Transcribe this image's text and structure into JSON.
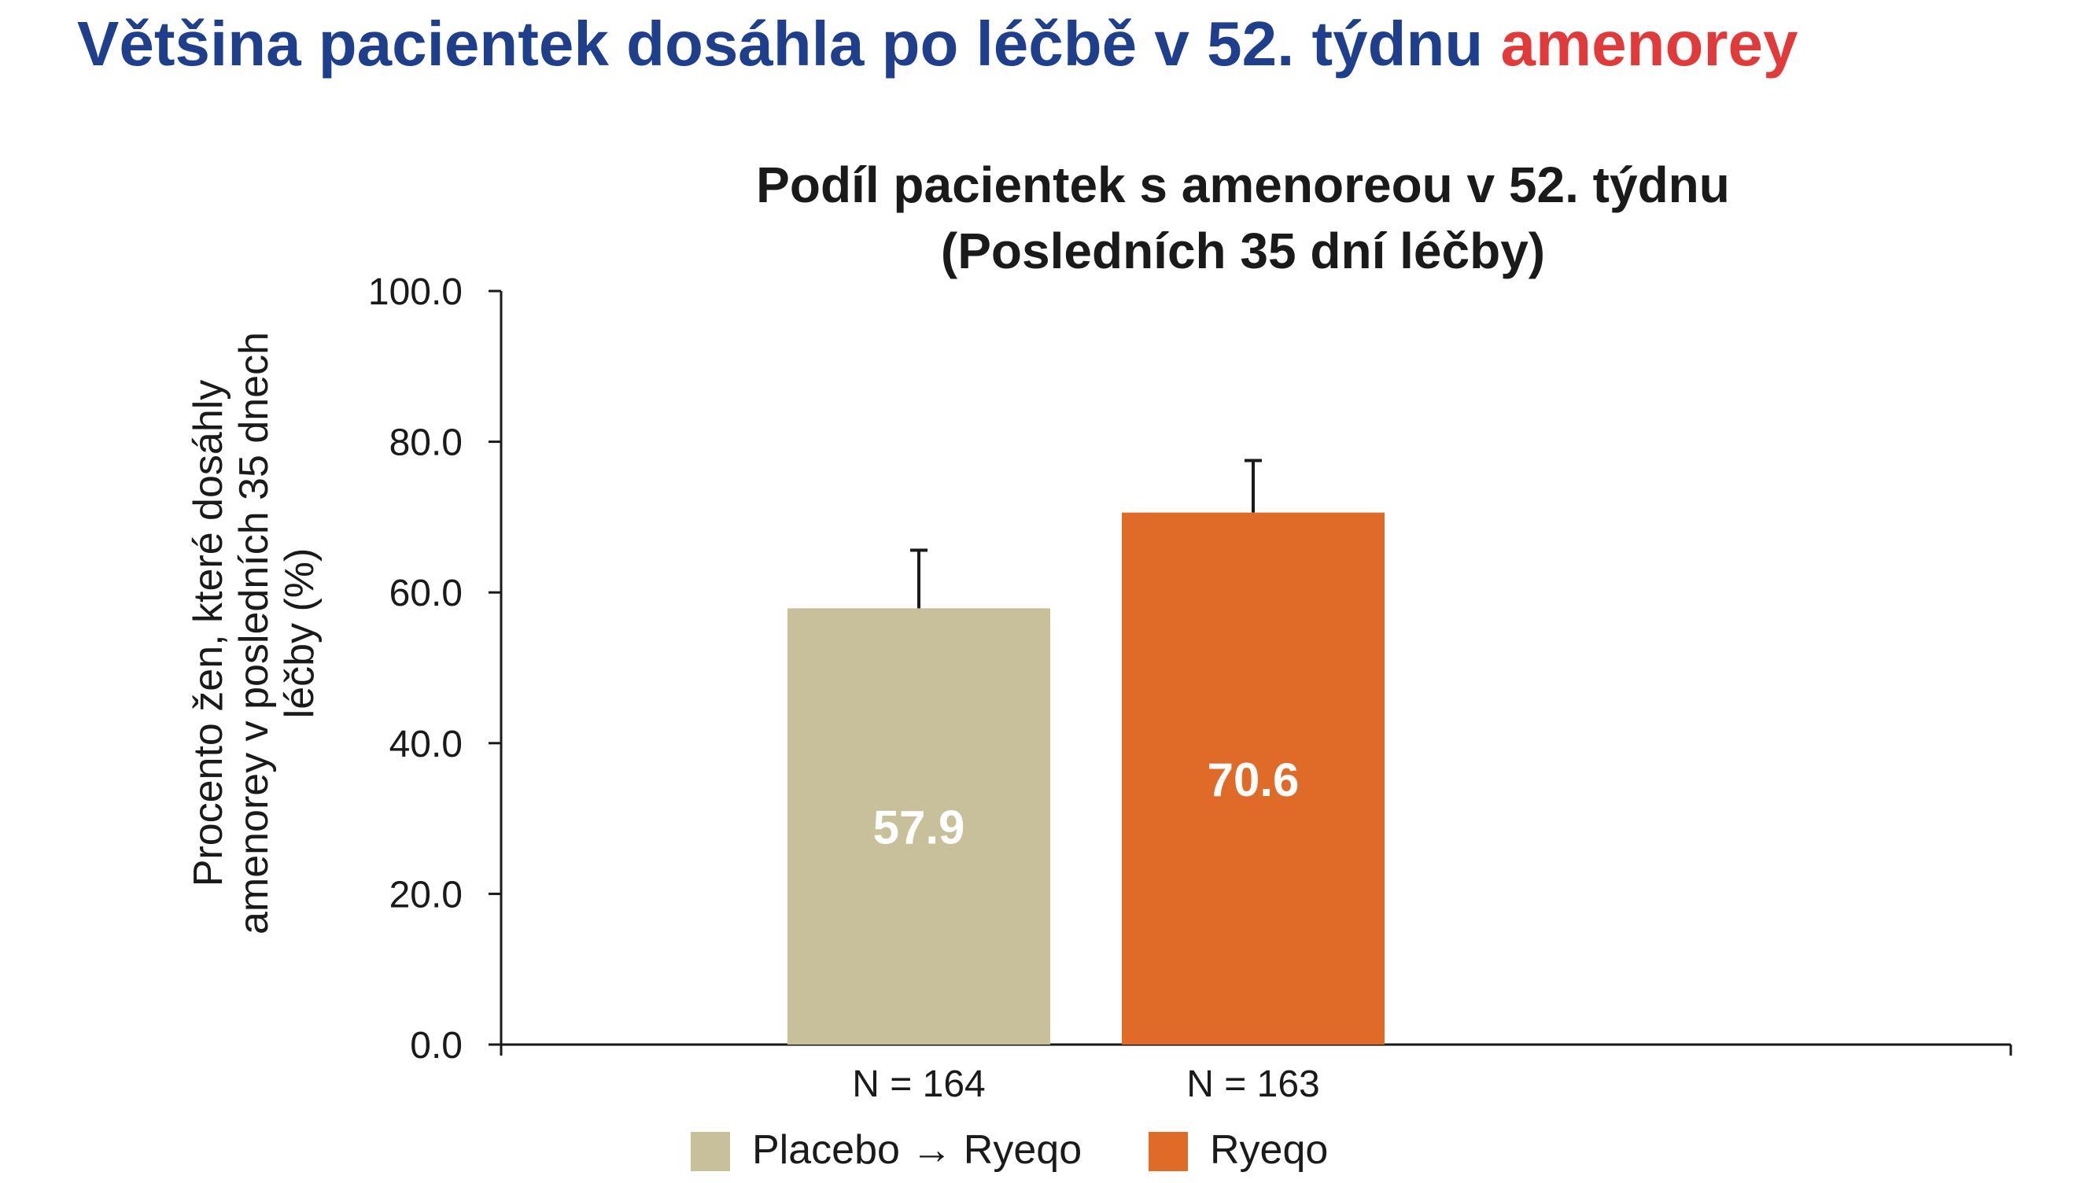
{
  "slide_title": {
    "main": "Většina pacientek dosáhla po léčbě v 52. týdnu",
    "accent": "amenorey"
  },
  "colors": {
    "title_blue": "#1f3e8c",
    "title_red": "#e03a3a",
    "placebo_bar": "#c7c09a",
    "ryeqo_bar": "#e06b28"
  },
  "chart_data": {
    "type": "bar",
    "title": "Podíl pacientek s amenoreou v 52. týdnu",
    "subtitle": "(Posledních 35 dní léčby)",
    "ylabel_lines": [
      "Procento žen, které dosáhly",
      "amenorey v posledních 35 dnech",
      "léčby (%)"
    ],
    "ylim": [
      0,
      100
    ],
    "yticks": [
      "0.0",
      "20.0",
      "40.0",
      "60.0",
      "80.0",
      "100.0"
    ],
    "grid": false,
    "categories": [
      "N = 164",
      "N = 163"
    ],
    "series": [
      {
        "name": "Placebo → Ryeqo",
        "value": 57.9,
        "label": "57.9",
        "error_upper": 65.6,
        "color": "#c7c09a"
      },
      {
        "name": "Ryeqo",
        "value": 70.6,
        "label": "70.6",
        "error_upper": 77.5,
        "color": "#e06b28"
      }
    ],
    "legend_position": "bottom"
  }
}
